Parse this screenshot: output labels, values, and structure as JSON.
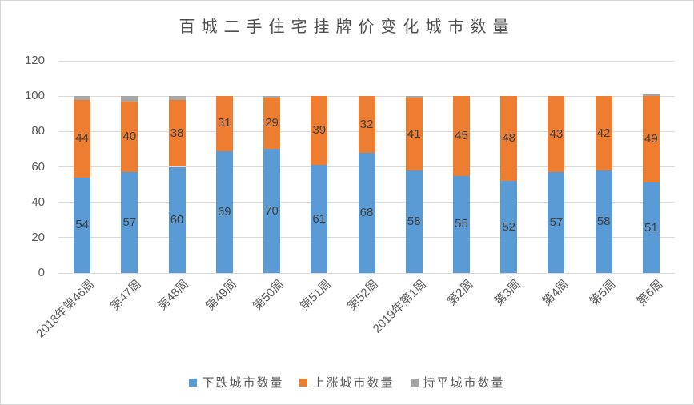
{
  "title": "百城二手住宅挂牌价变化城市数量",
  "colors": {
    "down": "#5B9BD5",
    "up": "#ED7D31",
    "flat": "#A5A5A5",
    "gridline": "#D9D9D9",
    "axis_text": "#595959",
    "data_label_text": "#404040",
    "border": "#D6D6D6"
  },
  "chart_data": {
    "type": "bar",
    "stacked": true,
    "title": "百城二手住宅挂牌价变化城市数量",
    "categories": [
      "2018年第46周",
      "第47周",
      "第48周",
      "第49周",
      "第50周",
      "第51周",
      "第52周",
      "2019年第1周",
      "第2周",
      "第3周",
      "第4周",
      "第5周",
      "第6周"
    ],
    "series": [
      {
        "name": "下跌城市数量",
        "color": "#5B9BD5",
        "show_labels": true,
        "values": [
          54,
          57,
          60,
          69,
          70,
          61,
          68,
          58,
          55,
          52,
          57,
          58,
          51
        ]
      },
      {
        "name": "上涨城市数量",
        "color": "#ED7D31",
        "show_labels": true,
        "values": [
          44,
          40,
          38,
          31,
          29,
          39,
          32,
          41,
          45,
          48,
          43,
          42,
          49
        ]
      },
      {
        "name": "持平城市数量",
        "color": "#A5A5A5",
        "show_labels": false,
        "values": [
          2,
          3,
          2,
          0,
          1,
          0,
          0,
          1,
          0,
          0,
          0,
          0,
          1
        ]
      }
    ],
    "xlabel": "",
    "ylabel": "",
    "ylim": [
      0,
      120
    ],
    "yticks": [
      0,
      20,
      40,
      60,
      80,
      100,
      120
    ],
    "grid": true,
    "legend_position": "bottom"
  }
}
